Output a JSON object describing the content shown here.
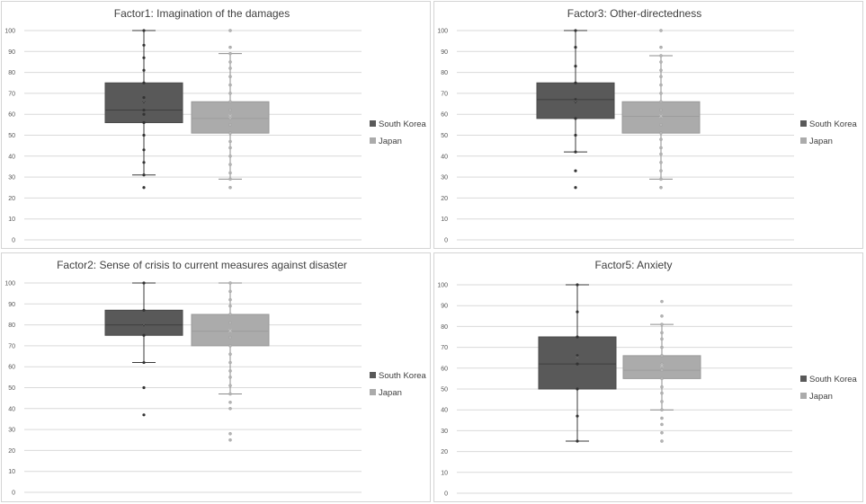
{
  "colors": {
    "south_korea": "#595959",
    "japan": "#ababab"
  },
  "chart_data": [
    {
      "type": "boxplot",
      "title": "Factor1: Imagination of the damages",
      "ylim": [
        0,
        100
      ],
      "yticks": [
        "0",
        "10",
        "20",
        "30",
        "40",
        "50",
        "60",
        "70",
        "80",
        "90",
        "100"
      ],
      "grid": true,
      "legend_position": "right",
      "series": [
        {
          "name": "South Korea",
          "min": 31,
          "q1": 56,
          "median": 62,
          "q3": 75,
          "max": 100,
          "mean": 66,
          "points": [
            25,
            31,
            37,
            43,
            50,
            56,
            60,
            62,
            66,
            68,
            75,
            81,
            87,
            93,
            100
          ]
        },
        {
          "name": "Japan",
          "min": 29,
          "q1": 51,
          "median": 58,
          "q3": 66,
          "max": 89,
          "mean": 59,
          "points": [
            25,
            29,
            32,
            36,
            40,
            44,
            47,
            51,
            55,
            58,
            62,
            66,
            70,
            74,
            78,
            82,
            85,
            89,
            92,
            100
          ]
        }
      ]
    },
    {
      "type": "boxplot",
      "title": "Factor3:  Other-directedness",
      "ylim": [
        0,
        100
      ],
      "yticks": [
        "0",
        "10",
        "20",
        "30",
        "40",
        "50",
        "60",
        "70",
        "80",
        "90",
        "100"
      ],
      "grid": true,
      "legend_position": "right",
      "series": [
        {
          "name": "South Korea",
          "min": 42,
          "q1": 58,
          "median": 67,
          "q3": 75,
          "max": 100,
          "mean": 66,
          "points": [
            25,
            33,
            42,
            50,
            58,
            66,
            67,
            75,
            83,
            92,
            100
          ]
        },
        {
          "name": "Japan",
          "min": 29,
          "q1": 51,
          "median": 59,
          "q3": 66,
          "max": 88,
          "mean": 59,
          "points": [
            25,
            29,
            33,
            37,
            41,
            44,
            48,
            51,
            55,
            59,
            62,
            66,
            70,
            74,
            78,
            81,
            85,
            88,
            92,
            100
          ]
        }
      ]
    },
    {
      "type": "boxplot",
      "title": "Factor2: Sense of crisis to current measures against disaster",
      "ylim": [
        0,
        100
      ],
      "yticks": [
        "0",
        "10",
        "20",
        "30",
        "40",
        "50",
        "60",
        "70",
        "80",
        "90",
        "100"
      ],
      "grid": true,
      "legend_position": "right",
      "series": [
        {
          "name": "South Korea",
          "min": 62,
          "q1": 75,
          "median": 80,
          "q3": 87,
          "max": 100,
          "mean": 80,
          "points": [
            37,
            50,
            62,
            75,
            80,
            87,
            100
          ]
        },
        {
          "name": "Japan",
          "min": 47,
          "q1": 70,
          "median": 77,
          "q3": 85,
          "max": 100,
          "mean": 77,
          "points": [
            25,
            28,
            40,
            43,
            47,
            51,
            55,
            58,
            62,
            66,
            70,
            74,
            77,
            81,
            85,
            89,
            92,
            96,
            100
          ]
        }
      ]
    },
    {
      "type": "boxplot",
      "title": "Factor5:  Anxiety",
      "ylim": [
        0,
        100
      ],
      "yticks": [
        "0",
        "10",
        "20",
        "30",
        "40",
        "50",
        "60",
        "70",
        "80",
        "90",
        "100"
      ],
      "grid": true,
      "legend_position": "right",
      "series": [
        {
          "name": "South Korea",
          "min": 25,
          "q1": 50,
          "median": 62,
          "q3": 75,
          "max": 100,
          "mean": 65,
          "points": [
            25,
            37,
            50,
            62,
            66,
            75,
            87,
            100
          ]
        },
        {
          "name": "Japan",
          "min": 40,
          "q1": 55,
          "median": 59,
          "q3": 66,
          "max": 81,
          "mean": 61,
          "points": [
            25,
            29,
            33,
            36,
            40,
            44,
            48,
            51,
            55,
            59,
            62,
            66,
            70,
            74,
            77,
            81,
            85,
            92
          ]
        }
      ]
    }
  ]
}
